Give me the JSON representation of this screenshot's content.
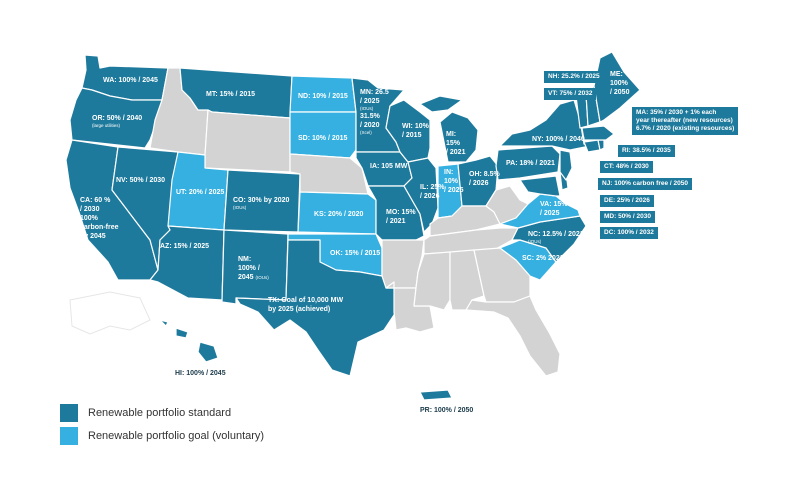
{
  "colors": {
    "standard": "#1e7a9c",
    "goal": "#35b0e0",
    "none": "#d3d3d3",
    "border": "#ffffff"
  },
  "legend": {
    "standard": "Renewable portfolio standard",
    "goal": "Renewable portfolio goal (voluntary)"
  },
  "labels": {
    "WA": "WA: 100% / 2045",
    "OR": "OR: 50% / 2040",
    "OR_sub": "(large utilities)",
    "CA": "CA: 60 %",
    "CA_2": "/ 2030",
    "CA_3": "100%",
    "CA_4": "carbon-free",
    "CA_5": "by 2045",
    "NV": "NV: 50% / 2030",
    "AZ": "AZ: 15% / 2025",
    "MT": "MT: 15% / 2015",
    "UT": "UT: 20% / 2025",
    "CO": "CO: 30% by 2020",
    "CO_sub": "(IOUs)",
    "NM_1": "NM:",
    "NM_2": "100% /",
    "NM_3": "2045",
    "NM_sub": "(IOUs)",
    "TX_1": "TX: Goal of 10,000 MW",
    "TX_2": "by 2025 (achieved)",
    "ND": "ND: 10% / 2015",
    "SD": "SD: 10% / 2015",
    "KS": "KS: 20% / 2020",
    "OK": "OK: 15% / 2015",
    "MN_1": "MN: 26.5",
    "MN_2": "/ 2025",
    "MN_sub": "(IOUs)",
    "MN_3": "31.5%",
    "MN_4": "/ 2020",
    "MN_sub2": "(Xcel)",
    "IA": "IA: 105 MW",
    "MO_1": "MO: 15%",
    "MO_2": "/ 2021",
    "WI_1": "WI: 10%",
    "WI_2": "/ 2015",
    "IL_1": "IL: 25%",
    "IL_2": "/ 2026",
    "MI_1": "MI:",
    "MI_2": "15%",
    "MI_3": "/ 2021",
    "IN_1": "IN:",
    "IN_2": "10%",
    "IN_3": "/ 2025",
    "OH_1": "OH: 8.5%",
    "OH_2": "/ 2026",
    "PA": "PA: 18% / 2021",
    "NY": "NY: 100% / 2040",
    "ME_1": "ME:",
    "ME_2": "100%",
    "ME_3": "/ 2050",
    "VA_1": "VA: 15%",
    "VA_2": "/ 2025",
    "NC": "NC: 12.5% / 2021",
    "NC_sub": "(IOUs)",
    "SC": "SC: 2% 2021",
    "HI": "HI: 100% / 2045",
    "PR": "PR: 100% / 2050"
  },
  "callouts": {
    "NH": "NH: 25.2% / 2025",
    "VT": "VT: 75% / 2032",
    "MA_1": "MA: 35% / 2030 + 1% each",
    "MA_2": "year thereafter (new resources)",
    "MA_3": "6.7% / 2020 (existing resources)",
    "RI": "RI: 38.5% / 2035",
    "CT": "CT: 48% / 2030",
    "NJ": "NJ: 100% carbon free / 2050",
    "DE": "DE: 25% / 2026",
    "MD": "MD: 50% / 2030",
    "DC": "DC: 100% / 2032"
  }
}
